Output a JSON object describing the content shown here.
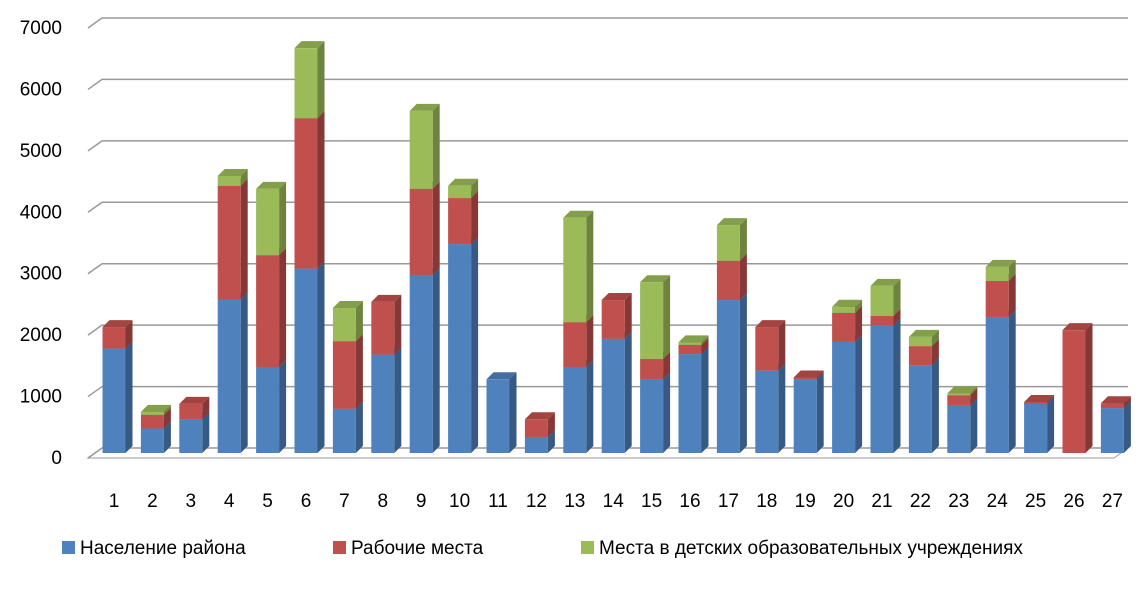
{
  "chart_data": {
    "type": "bar3d_stacked",
    "categories": [
      "1",
      "2",
      "3",
      "4",
      "5",
      "6",
      "7",
      "8",
      "9",
      "10",
      "11",
      "12",
      "13",
      "14",
      "15",
      "16",
      "17",
      "18",
      "19",
      "20",
      "21",
      "22",
      "23",
      "24",
      "25",
      "26",
      "27"
    ],
    "series": [
      {
        "name": "Население района",
        "color": "#4f81bd",
        "values": [
          1700,
          400,
          550,
          2500,
          1400,
          3000,
          720,
          1600,
          2900,
          3400,
          1200,
          260,
          1400,
          1860,
          1200,
          1610,
          2490,
          1340,
          1200,
          1810,
          2080,
          1430,
          770,
          2210,
          800,
          0,
          730
        ]
      },
      {
        "name": "Рабочие места",
        "color": "#c0504d",
        "values": [
          350,
          220,
          250,
          1850,
          1820,
          2450,
          1100,
          860,
          1400,
          750,
          0,
          290,
          730,
          630,
          330,
          150,
          640,
          710,
          30,
          470,
          150,
          310,
          170,
          590,
          30,
          2000,
          80
        ]
      },
      {
        "name": "Места в детских образовательных учреждениях",
        "color": "#9bbb59",
        "values": [
          0,
          50,
          0,
          160,
          1080,
          1140,
          540,
          0,
          1270,
          200,
          0,
          0,
          1700,
          0,
          1250,
          40,
          580,
          0,
          0,
          100,
          490,
          150,
          30,
          230,
          0,
          0,
          0
        ]
      }
    ],
    "ylim": [
      0,
      7000
    ],
    "yticks": [
      0,
      1000,
      2000,
      3000,
      4000,
      5000,
      6000,
      7000
    ],
    "grid": true
  }
}
